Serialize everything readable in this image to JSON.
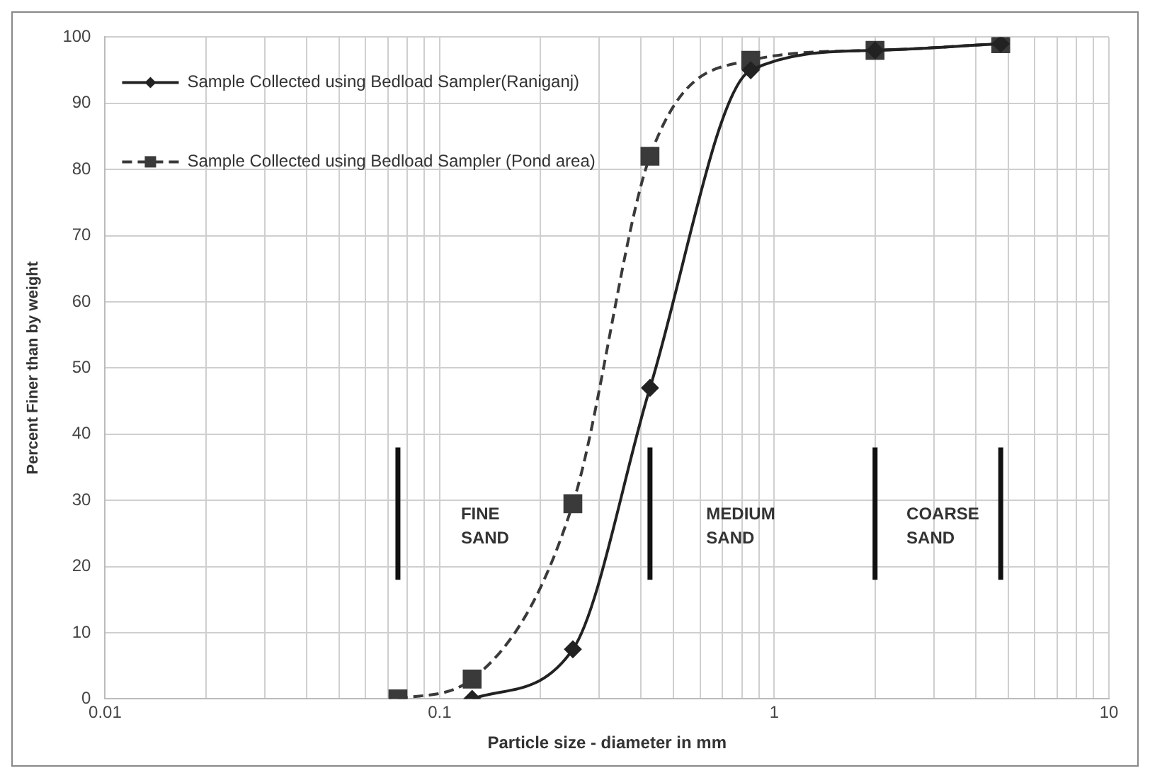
{
  "chart_data": {
    "type": "line",
    "xlabel": "Particle size - diameter in mm",
    "ylabel": "Percent Finer than by weight",
    "series": [
      {
        "name": "Sample Collected using Bedload Sampler(Raniganj)",
        "color": "#222222",
        "marker": "diamond",
        "line_style": "solid",
        "x": [
          0.125,
          0.25,
          0.425,
          0.85,
          2,
          4.75
        ],
        "values": [
          0,
          7.5,
          47,
          95,
          98,
          99
        ]
      },
      {
        "name": "Sample Collected using Bedload Sampler (Pond area)",
        "color": "#3a3a3a",
        "marker": "square",
        "line_style": "dashed",
        "x": [
          0.075,
          0.125,
          0.25,
          0.425,
          0.85,
          2,
          4.75
        ],
        "values": [
          0,
          3,
          29.5,
          82,
          96.5,
          98,
          99
        ]
      }
    ],
    "log": "x",
    "xlim": [
      0.01,
      10
    ],
    "xticks": [
      0.01,
      {
        "value": 0.02,
        "label": null
      },
      {
        "value": 0.03,
        "label": null
      },
      {
        "value": 0.04,
        "label": null
      },
      {
        "value": 0.05,
        "label": null
      },
      {
        "value": 0.06,
        "label": null
      },
      {
        "value": 0.07,
        "label": null
      },
      {
        "value": 0.08,
        "label": null
      },
      {
        "value": 0.09,
        "label": null
      },
      0.1,
      {
        "value": 0.2,
        "label": null
      },
      {
        "value": 0.3,
        "label": null
      },
      {
        "value": 0.4,
        "label": null
      },
      {
        "value": 0.5,
        "label": null
      },
      {
        "value": 0.6,
        "label": null
      },
      {
        "value": 0.7,
        "label": null
      },
      {
        "value": 0.8,
        "label": null
      },
      {
        "value": 0.9,
        "label": null
      },
      1,
      {
        "value": 2,
        "label": null
      },
      {
        "value": 3,
        "label": null
      },
      {
        "value": 4,
        "label": null
      },
      {
        "value": 5,
        "label": null
      },
      {
        "value": 6,
        "label": null
      },
      {
        "value": 7,
        "label": null
      },
      {
        "value": 8,
        "label": null
      },
      {
        "value": 9,
        "label": null
      },
      10
    ],
    "ylim": [
      0,
      100
    ],
    "yticks": [
      0,
      10,
      20,
      30,
      40,
      50,
      60,
      70,
      80,
      90,
      100
    ],
    "grid": true,
    "legend": "top left",
    "ref_lines": [
      {
        "axis": "x",
        "value": 0.075
      },
      {
        "axis": "x",
        "value": 0.425
      },
      {
        "axis": "x",
        "value": 2
      },
      {
        "axis": "x",
        "value": 4.75
      }
    ],
    "annotations": [
      "FINE SAND",
      "MEDIUM SAND",
      "COARSE SAND"
    ]
  }
}
